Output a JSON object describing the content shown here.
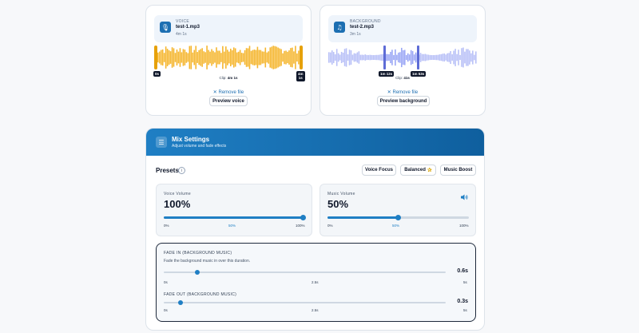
{
  "voice": {
    "kind": "VOICE",
    "filename": "test-1.mp3",
    "duration": "4m 1s",
    "start_tag": "0s",
    "end_tag_line1": "4m",
    "end_tag_line2": "1s",
    "clip_label": "Clip:",
    "clip_value": "4m 1s",
    "remove_label": "Remove file",
    "preview_label": "Preview voice",
    "wave_color": "#f5b62e",
    "icon": "mic-icon"
  },
  "background": {
    "kind": "BACKGROUND",
    "filename": "test-2.mp3",
    "duration": "3m 1s",
    "start_tag": "1m 12s",
    "end_tag": "1m 53s",
    "clip_label": "Clip:",
    "clip_value": "41s",
    "remove_label": "Remove file",
    "preview_label": "Preview background",
    "wave_color": "#9aa6f5",
    "icon": "music-note-icon"
  },
  "mix": {
    "title": "Mix Settings",
    "subtitle": "Adjust volume and fade effects",
    "icon": "sliders-icon",
    "header_color": "#1f7fc4",
    "presets_title": "Presets",
    "presets_info": "i",
    "presets": [
      {
        "label": "Voice Focus"
      },
      {
        "label": "Balanced",
        "badge": "star-icon"
      },
      {
        "label": "Music Boost"
      }
    ],
    "voice_volume": {
      "label": "Voice Volume",
      "value": "100%",
      "level": 1.0,
      "ticks": [
        "0%",
        "50%",
        "100%"
      ]
    },
    "music_volume": {
      "label": "Music Volume",
      "value": "50%",
      "level": 0.5,
      "ticks": [
        "0%",
        "50%",
        "100%"
      ],
      "icon": "speaker-icon"
    },
    "fade_in": {
      "label": "FADE IN (BACKGROUND MUSIC)",
      "description": "Fade the background music in over this duration.",
      "value": "0.6s",
      "level": 0.12,
      "ticks": [
        "0s",
        "2.5s",
        "5s"
      ]
    },
    "fade_out": {
      "label": "FADE OUT (BACKGROUND MUSIC)",
      "value": "0.3s",
      "level": 0.06,
      "ticks": [
        "0s",
        "2.5s",
        "5s"
      ]
    }
  }
}
